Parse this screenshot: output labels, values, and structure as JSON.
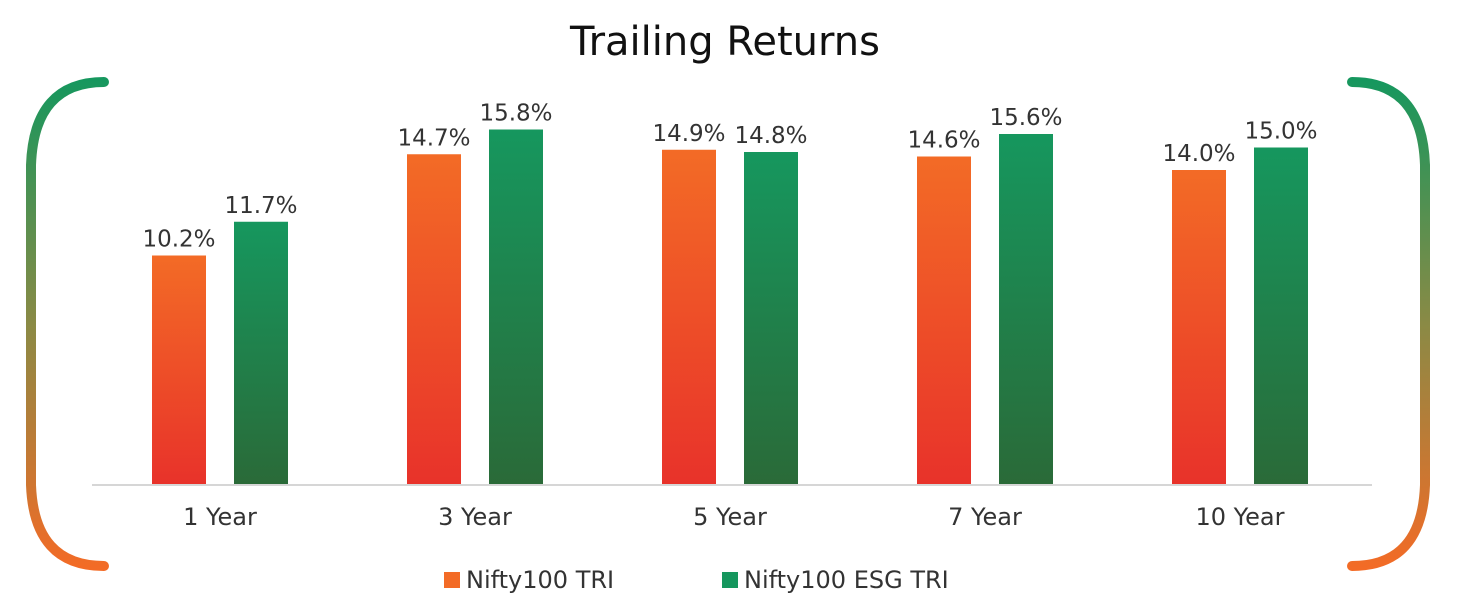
{
  "colors": {
    "nifty100_top": "#f36b26",
    "nifty100_bottom": "#e8322a",
    "esg_top": "#16975e",
    "esg_bottom": "#2a6a38",
    "bracket_top": "#16975e",
    "bracket_bottom": "#f36b26",
    "axis": "#d6d6d6"
  },
  "chart_data": {
    "type": "bar",
    "title": "Trailing Returns",
    "categories": [
      "1 Year",
      "3 Year",
      "5 Year",
      "7 Year",
      "10 Year"
    ],
    "series": [
      {
        "name": "Nifty100 TRI",
        "values": [
          10.2,
          14.7,
          14.9,
          14.6,
          14.0
        ],
        "labels": [
          "10.2%",
          "14.7%",
          "14.9%",
          "14.6%",
          "14.0%"
        ]
      },
      {
        "name": "Nifty100 ESG TRI",
        "values": [
          11.7,
          15.8,
          14.8,
          15.6,
          15.0
        ],
        "labels": [
          "11.7%",
          "15.8%",
          "14.8%",
          "15.6%",
          "15.0%"
        ]
      }
    ],
    "ylim": [
      0,
      16
    ],
    "grid": false,
    "legend_position": "bottom"
  }
}
